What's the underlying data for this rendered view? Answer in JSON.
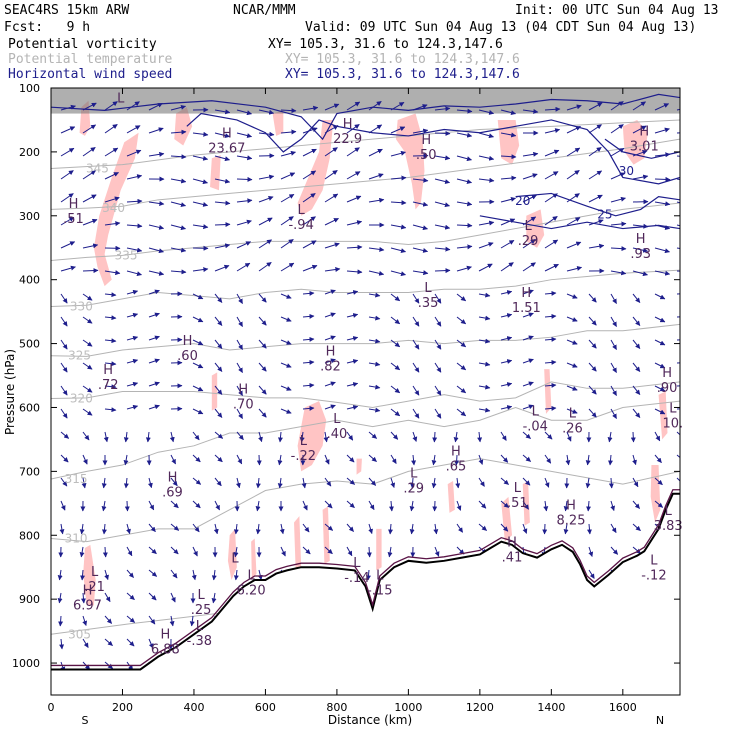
{
  "header": {
    "model": "SEAC4RS 15km ARW",
    "fcst": "Fcst:   9 h",
    "org": "NCAR/MMM",
    "init": "Init: 00 UTC Sun 04 Aug 13",
    "valid": "Valid: 09 UTC Sun 04 Aug 13 (04 CDT Sun 04 Aug 13)",
    "fields": [
      {
        "name": "Potential vorticity",
        "xy": "XY= 105.3, 31.6 to 124.3,147.6",
        "color": "#000000"
      },
      {
        "name": "Potential temperature",
        "xy": "XY= 105.3, 31.6 to 124.3,147.6",
        "color": "#b4b4b4"
      },
      {
        "name": "Horizontal wind speed",
        "xy": "XY= 105.3, 31.6 to 124.3,147.6",
        "color": "#1e1e8c"
      }
    ]
  },
  "chart_data": {
    "type": "cross-section",
    "xlabel": "Distance (km)",
    "ylabel": "Pressure (hPa)",
    "xlim": [
      0,
      1760
    ],
    "ylim": [
      1050,
      100
    ],
    "x_ticks": [
      0,
      200,
      400,
      600,
      800,
      1000,
      1200,
      1400,
      1600
    ],
    "y_ticks": [
      100,
      200,
      300,
      400,
      500,
      600,
      700,
      800,
      900,
      1000
    ],
    "end_labels": {
      "left": "S",
      "right": "N"
    },
    "colors": {
      "pv_fill": "#ffc4c4",
      "theta": "#b4b4b4",
      "wind": "#1e1e8c",
      "pv_contour": "#5a1446",
      "terrain": "#000000"
    },
    "terrain": [
      [
        0,
        1010
      ],
      [
        250,
        1010
      ],
      [
        300,
        990
      ],
      [
        350,
        975
      ],
      [
        400,
        955
      ],
      [
        450,
        935
      ],
      [
        480,
        915
      ],
      [
        510,
        895
      ],
      [
        540,
        880
      ],
      [
        570,
        870
      ],
      [
        600,
        870
      ],
      [
        630,
        860
      ],
      [
        660,
        855
      ],
      [
        700,
        850
      ],
      [
        750,
        850
      ],
      [
        800,
        852
      ],
      [
        850,
        855
      ],
      [
        880,
        880
      ],
      [
        900,
        915
      ],
      [
        920,
        870
      ],
      [
        960,
        850
      ],
      [
        1000,
        840
      ],
      [
        1050,
        843
      ],
      [
        1100,
        840
      ],
      [
        1150,
        835
      ],
      [
        1200,
        830
      ],
      [
        1230,
        820
      ],
      [
        1260,
        810
      ],
      [
        1290,
        815
      ],
      [
        1320,
        828
      ],
      [
        1360,
        835
      ],
      [
        1400,
        822
      ],
      [
        1430,
        815
      ],
      [
        1460,
        826
      ],
      [
        1480,
        845
      ],
      [
        1500,
        870
      ],
      [
        1520,
        880
      ],
      [
        1560,
        862
      ],
      [
        1600,
        842
      ],
      [
        1640,
        832
      ],
      [
        1660,
        825
      ],
      [
        1700,
        790
      ],
      [
        1720,
        760
      ],
      [
        1740,
        735
      ],
      [
        1760,
        735
      ]
    ],
    "theta_contours": [
      {
        "label": "305",
        "x": 80,
        "p": 955
      },
      {
        "label": "310",
        "x": 70,
        "p": 805
      },
      {
        "label": "315",
        "x": 70,
        "p": 712
      },
      {
        "label": "320",
        "x": 85,
        "p": 586
      },
      {
        "label": "325",
        "x": 80,
        "p": 519
      },
      {
        "label": "330",
        "x": 85,
        "p": 442
      },
      {
        "label": "335",
        "x": 210,
        "p": 362
      },
      {
        "label": "340",
        "x": 175,
        "p": 288
      },
      {
        "label": "345",
        "x": 130,
        "p": 226
      }
    ],
    "wind_labels": [
      {
        "label": "30",
        "x": 1610,
        "p": 230
      },
      {
        "label": "25",
        "x": 1550,
        "p": 298
      },
      {
        "label": "20",
        "x": 1320,
        "p": 277
      }
    ],
    "extrema": [
      {
        "type": "L",
        "value": "",
        "x": 195,
        "p": 135
      },
      {
        "type": "H",
        "value": "23.67",
        "x": 492,
        "p": 190
      },
      {
        "type": "H",
        "value": "22.9",
        "x": 830,
        "p": 175
      },
      {
        "type": "H",
        "value": ".50",
        "x": 1050,
        "p": 200
      },
      {
        "type": "H",
        "value": "3.01",
        "x": 1660,
        "p": 187
      },
      {
        "type": "H",
        "value": ".51",
        "x": 63,
        "p": 300
      },
      {
        "type": "L",
        "value": "-.94",
        "x": 700,
        "p": 310
      },
      {
        "type": "L",
        "value": ".29",
        "x": 1335,
        "p": 335
      },
      {
        "type": "H",
        "value": ".93",
        "x": 1650,
        "p": 355
      },
      {
        "type": "L",
        "value": ".35",
        "x": 1055,
        "p": 432
      },
      {
        "type": "H",
        "value": "1.51",
        "x": 1330,
        "p": 440
      },
      {
        "type": "H",
        "value": ".60",
        "x": 382,
        "p": 515
      },
      {
        "type": "H",
        "value": ".82",
        "x": 782,
        "p": 531
      },
      {
        "type": "H",
        "value": ".90",
        "x": 1724,
        "p": 565
      },
      {
        "type": "H",
        "value": ".72",
        "x": 160,
        "p": 560
      },
      {
        "type": "H",
        "value": ".70",
        "x": 538,
        "p": 591
      },
      {
        "type": "L",
        "value": "-.04",
        "x": 1355,
        "p": 625
      },
      {
        "type": "L",
        "value": ".26",
        "x": 1459,
        "p": 628
      },
      {
        "type": "L",
        "value": "10.",
        "x": 1740,
        "p": 620
      },
      {
        "type": "L",
        "value": ".40",
        "x": 800,
        "p": 637
      },
      {
        "type": "L",
        "value": "-.22",
        "x": 706,
        "p": 671
      },
      {
        "type": "H",
        "value": ".65",
        "x": 1133,
        "p": 688
      },
      {
        "type": "L",
        "value": ".29",
        "x": 1015,
        "p": 722
      },
      {
        "type": "H",
        "value": ".69",
        "x": 340,
        "p": 728
      },
      {
        "type": "L",
        "value": ".51",
        "x": 1305,
        "p": 745
      },
      {
        "type": "H",
        "value": "8.25",
        "x": 1455,
        "p": 772
      },
      {
        "type": "L",
        "value": "3.83",
        "x": 1727,
        "p": 781
      },
      {
        "type": "H",
        "value": ".41",
        "x": 1290,
        "p": 830
      },
      {
        "type": "L",
        "value": ".21",
        "x": 122,
        "p": 876
      },
      {
        "type": "L",
        "value": "",
        "x": 515,
        "p": 855
      },
      {
        "type": "L",
        "value": "-.14",
        "x": 856,
        "p": 862
      },
      {
        "type": "L",
        "value": "-.15",
        "x": 920,
        "p": 882
      },
      {
        "type": "L",
        "value": "6.20",
        "x": 560,
        "p": 882
      },
      {
        "type": "L",
        "value": "-.12",
        "x": 1687,
        "p": 858
      },
      {
        "type": "H",
        "value": "6.97",
        "x": 102,
        "p": 905
      },
      {
        "type": "L",
        "value": ".25",
        "x": 420,
        "p": 912
      },
      {
        "type": "L",
        "value": "-.38",
        "x": 415,
        "p": 961
      },
      {
        "type": "H",
        "value": "6.88",
        "x": 320,
        "p": 974
      }
    ]
  }
}
